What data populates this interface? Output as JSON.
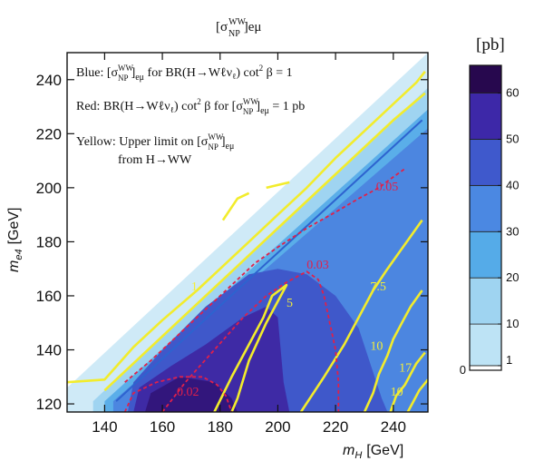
{
  "chart_data": {
    "type": "contour",
    "title": "[σ_NP^WW]_eμ",
    "title_main": "[σ",
    "title_sup": "WW",
    "title_sub": "NP",
    "title_tail": "]eμ",
    "xlabel": "m_H [GeV]",
    "xlabel_main": "m",
    "xlabel_sub": "H",
    "xlabel_unit": "[GeV]",
    "ylabel": "m_e4 [GeV]",
    "ylabel_main": "m",
    "ylabel_sub": "e4",
    "ylabel_unit": "[GeV]",
    "xlim": [
      127,
      252
    ],
    "ylim": [
      117,
      250
    ],
    "xticks": [
      140,
      160,
      180,
      200,
      220,
      240
    ],
    "yticks": [
      120,
      140,
      160,
      180,
      200,
      220,
      240
    ],
    "colorbar": {
      "unit": "[pb]",
      "levels": [
        0,
        1,
        10,
        20,
        30,
        40,
        50,
        60
      ],
      "tick_labels": [
        "0",
        "1",
        "10",
        "20",
        "30",
        "40",
        "50",
        "60"
      ],
      "range": [
        0,
        66
      ],
      "colors": [
        "#ffffff",
        "#bde3f5",
        "#9fd4f1",
        "#55abe8",
        "#4b88e2",
        "#3f59cc",
        "#3d28a8",
        "#33157f",
        "#27084e"
      ]
    },
    "fills": [
      {
        "level": "0-1",
        "color": "#cfeaf7",
        "points": [
          [
            127,
            117
          ],
          [
            127,
            126
          ],
          [
            252,
            250
          ],
          [
            252,
            117
          ]
        ]
      },
      {
        "level": "1-10",
        "color": "#9fd4f1",
        "points": [
          [
            136,
            117
          ],
          [
            136,
            121
          ],
          [
            252,
            237
          ],
          [
            252,
            117
          ]
        ]
      },
      {
        "level": "10-20",
        "color": "#5aaee9",
        "points": [
          [
            140,
            117
          ],
          [
            140,
            121
          ],
          [
            252,
            229
          ],
          [
            252,
            117
          ]
        ]
      },
      {
        "level": "20-30",
        "color": "#4c86e0",
        "points": [
          [
            143,
            117
          ],
          [
            143,
            121
          ],
          [
            252,
            222
          ],
          [
            252,
            117
          ]
        ]
      },
      {
        "level": "30-40",
        "color": "#3f58ca",
        "points": [
          [
            148,
            117
          ],
          [
            150,
            128
          ],
          [
            160,
            140
          ],
          [
            175,
            156
          ],
          [
            190,
            168
          ],
          [
            200,
            170
          ],
          [
            210,
            168
          ],
          [
            220,
            160
          ],
          [
            228,
            148
          ],
          [
            232,
            135
          ],
          [
            236,
            122
          ],
          [
            238,
            117
          ]
        ]
      },
      {
        "level": "40-50",
        "color": "#3e2aa5",
        "points": [
          [
            150,
            117
          ],
          [
            152,
            126
          ],
          [
            163,
            134
          ],
          [
            175,
            142
          ],
          [
            188,
            152
          ],
          [
            196,
            156
          ],
          [
            200,
            152
          ],
          [
            201,
            140
          ],
          [
            202,
            128
          ],
          [
            204,
            117
          ]
        ]
      },
      {
        "level": "50-60",
        "color": "#32167c",
        "points": [
          [
            154,
            117
          ],
          [
            156,
            124
          ],
          [
            166,
            130
          ],
          [
            178,
            128
          ],
          [
            184,
            122
          ],
          [
            186,
            117
          ]
        ]
      }
    ],
    "blue_band_line": {
      "color": "#2d63cf",
      "points": [
        [
          144,
          121
        ],
        [
          250,
          225
        ]
      ]
    },
    "yellow_curves": [
      {
        "label": "1",
        "label_at": [
          170,
          162
        ],
        "points": [
          [
            127,
            128
          ],
          [
            140,
            129
          ],
          [
            150,
            141
          ],
          [
            160,
            151
          ],
          [
            172,
            162
          ],
          [
            180,
            170
          ],
          [
            190,
            180
          ],
          [
            200,
            190
          ],
          [
            210,
            200
          ],
          [
            220,
            211
          ],
          [
            230,
            221
          ],
          [
            240,
            231
          ],
          [
            248,
            239
          ],
          [
            251,
            243
          ]
        ]
      },
      {
        "label": "",
        "label_at": null,
        "points": [
          [
            140,
            125
          ],
          [
            150,
            135
          ],
          [
            165,
            150
          ],
          [
            180,
            165
          ],
          [
            200,
            185
          ],
          [
            220,
            205
          ],
          [
            240,
            225
          ],
          [
            251,
            235
          ]
        ]
      },
      {
        "label": "",
        "label_at": null,
        "points": [
          [
            181,
            188
          ],
          [
            186,
            196
          ],
          [
            190,
            198
          ]
        ]
      },
      {
        "label": "",
        "label_at": null,
        "points": [
          [
            196,
            200
          ],
          [
            200,
            201
          ],
          [
            204,
            202
          ]
        ]
      },
      {
        "label": "5",
        "label_at": [
          203,
          156
        ],
        "points": [
          [
            178,
            117
          ],
          [
            184,
            130
          ],
          [
            190,
            142
          ],
          [
            195,
            152
          ],
          [
            198,
            160
          ],
          [
            203,
            164
          ],
          [
            196,
            150
          ],
          [
            190,
            136
          ],
          [
            186,
            122
          ],
          [
            184,
            117
          ]
        ]
      },
      {
        "label": "7.5",
        "label_at": [
          232,
          162
        ],
        "points": [
          [
            208,
            117
          ],
          [
            216,
            130
          ],
          [
            223,
            142
          ],
          [
            228,
            152
          ],
          [
            233,
            162
          ],
          [
            238,
            170
          ],
          [
            242,
            176
          ],
          [
            246,
            182
          ],
          [
            250,
            188
          ]
        ]
      },
      {
        "label": "10",
        "label_at": [
          232,
          140
        ],
        "points": [
          [
            230,
            117
          ],
          [
            233,
            124
          ],
          [
            235,
            131
          ],
          [
            238,
            138
          ],
          [
            240,
            144
          ],
          [
            243,
            150
          ],
          [
            246,
            156
          ],
          [
            250,
            162
          ]
        ]
      },
      {
        "label": "17",
        "label_at": [
          242,
          132
        ],
        "points": [
          [
            239,
            117
          ],
          [
            241,
            123
          ],
          [
            244,
            127
          ],
          [
            246,
            131
          ],
          [
            248,
            135
          ],
          [
            251,
            139
          ]
        ]
      },
      {
        "label": "10",
        "label_at": [
          239,
          123
        ],
        "points": [
          [
            245,
            117
          ],
          [
            247,
            121
          ],
          [
            249,
            125
          ],
          [
            252,
            129
          ]
        ]
      }
    ],
    "red_curves": [
      {
        "label": "0.02",
        "label_at": [
          165,
          123
        ],
        "points": [
          [
            147,
            117
          ],
          [
            150,
            124
          ],
          [
            158,
            128
          ],
          [
            166,
            130
          ],
          [
            174,
            130
          ],
          [
            179,
            127
          ],
          [
            182,
            123
          ],
          [
            184,
            117
          ]
        ]
      },
      {
        "label": "0.03",
        "label_at": [
          210,
          170
        ],
        "points": [
          [
            160,
            117
          ],
          [
            168,
            128
          ],
          [
            178,
            140
          ],
          [
            188,
            152
          ],
          [
            196,
            160
          ],
          [
            203,
            165
          ],
          [
            210,
            169
          ],
          [
            214,
            166
          ],
          [
            216,
            160
          ],
          [
            218,
            150
          ],
          [
            220,
            140
          ],
          [
            221,
            128
          ],
          [
            221,
            117
          ]
        ]
      },
      {
        "label": "0.05",
        "label_at": [
          234,
          199
        ],
        "points": [
          [
            147,
            128
          ],
          [
            156,
            136
          ],
          [
            168,
            148
          ],
          [
            180,
            160
          ],
          [
            192,
            172
          ],
          [
            200,
            178
          ],
          [
            210,
            185
          ],
          [
            220,
            191
          ],
          [
            228,
            196
          ],
          [
            235,
            200
          ],
          [
            240,
            204
          ],
          [
            244,
            207
          ]
        ]
      }
    ],
    "annotations": [
      {
        "parts": [
          "Blue: [σ",
          "WW",
          "NP",
          "]",
          "eμ",
          " for BR(H→Wℓν",
          "ℓ",
          ") cot",
          "2",
          " β = 1"
        ]
      },
      {
        "parts": [
          "Red: BR(H→Wℓν",
          "ℓ",
          ") cot",
          "2",
          " β for [σ",
          "WW",
          "NP",
          "]",
          "eμ",
          " = 1 pb"
        ]
      },
      {
        "parts": [
          "Yellow: Upper limit on [σ",
          "WW",
          "NP",
          "]",
          "eμ"
        ]
      },
      {
        "parts": [
          "from H→WW"
        ]
      }
    ]
  }
}
